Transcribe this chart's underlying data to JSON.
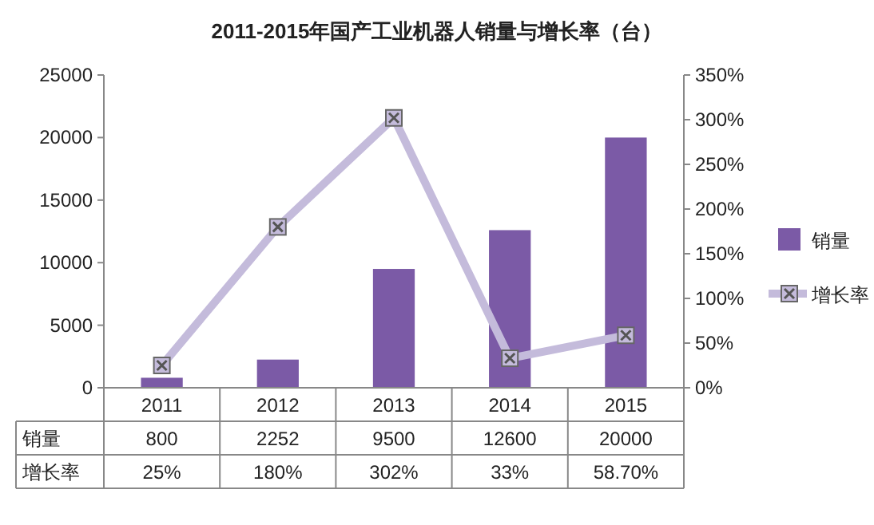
{
  "chart_data": {
    "type": "bar",
    "title": "2011-2015年国产工业机器人销量与增长率（台）",
    "categories": [
      "2011",
      "2012",
      "2013",
      "2014",
      "2015"
    ],
    "series": [
      {
        "name": "销量",
        "color": "#7b5aa6",
        "values": [
          800,
          2252,
          9500,
          12600,
          20000
        ],
        "value_labels": [
          "800",
          "2252",
          "9500",
          "12600",
          "20000"
        ]
      },
      {
        "name": "增长率",
        "type": "line",
        "axis": "y2",
        "color": "#c4bbdb",
        "values": [
          25,
          180,
          302,
          33,
          58.7
        ],
        "value_labels": [
          "25%",
          "180%",
          "302%",
          "33%",
          "58.70%"
        ],
        "marker": "square",
        "line_style": "solid"
      }
    ],
    "ylim": [
      0,
      25000
    ],
    "yticks": [
      0,
      5000,
      10000,
      15000,
      20000,
      25000
    ],
    "y2lim": [
      0,
      350
    ],
    "y2ticks": [
      {
        "value": 0,
        "label": "0%"
      },
      {
        "value": 50,
        "label": "50%"
      },
      {
        "value": 100,
        "label": "100%"
      },
      {
        "value": 150,
        "label": "150%"
      },
      {
        "value": 200,
        "label": "200%"
      },
      {
        "value": 250,
        "label": "250%"
      },
      {
        "value": 300,
        "label": "300%"
      },
      {
        "value": 350,
        "label": "350%"
      }
    ],
    "grid": false,
    "legend": "right"
  }
}
